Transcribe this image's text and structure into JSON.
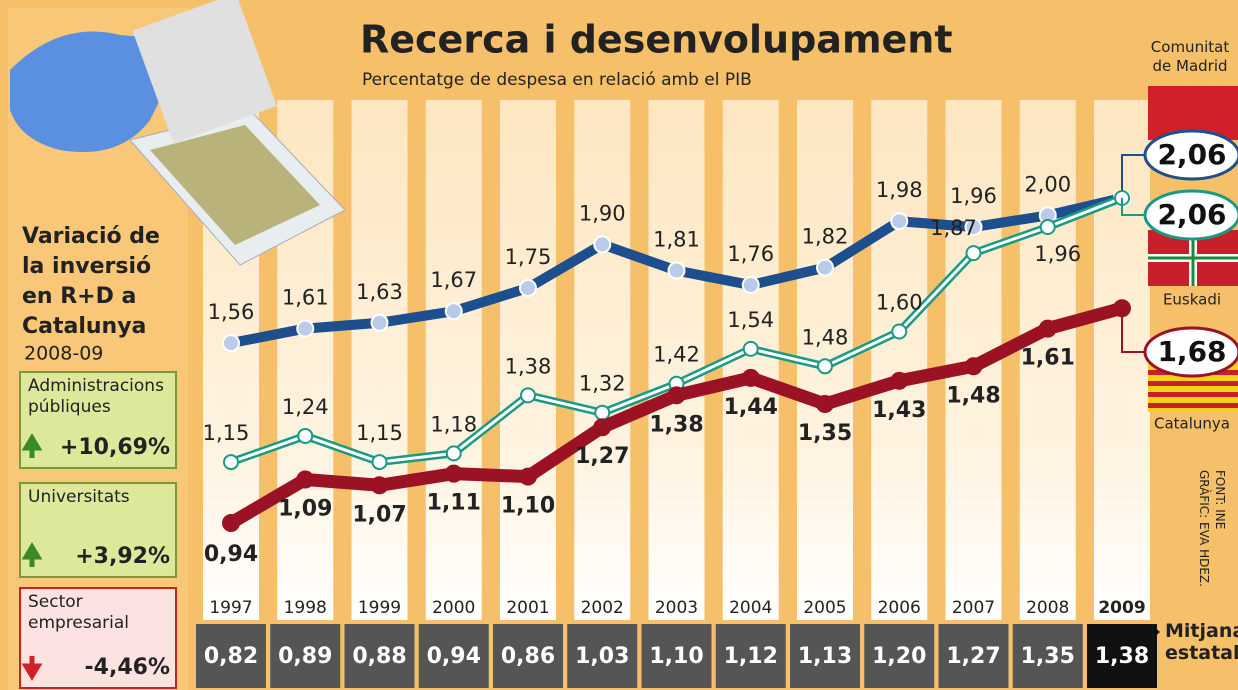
{
  "chart_data": {
    "type": "line",
    "title": "Recerca i desenvolupament",
    "subtitle": "Percentatge de despesa en relació amb el PIB",
    "categories": [
      "1997",
      "1998",
      "1999",
      "2000",
      "2001",
      "2002",
      "2003",
      "2004",
      "2005",
      "2006",
      "2007",
      "2008",
      "2009"
    ],
    "series": [
      {
        "name": "Comunitat de Madrid",
        "color": "#1d4f8f",
        "values": [
          1.56,
          1.61,
          1.63,
          1.67,
          1.75,
          1.9,
          1.81,
          1.76,
          1.82,
          1.98,
          1.96,
          2.0,
          2.06
        ],
        "value_labels": [
          "1,56",
          "1,61",
          "1,63",
          "1,67",
          "1,75",
          "1,90",
          "1,81",
          "1,76",
          "1,82",
          "1,98",
          "1,96",
          "2,00",
          "2,06"
        ]
      },
      {
        "name": "Euskadi",
        "color": "#1a9a84",
        "values": [
          1.15,
          1.24,
          1.15,
          1.18,
          1.38,
          1.32,
          1.42,
          1.54,
          1.48,
          1.6,
          1.87,
          1.96,
          2.06
        ],
        "value_labels": [
          "1,15",
          "1,24",
          "1,15",
          "1,18",
          "1,38",
          "1,32",
          "1,42",
          "1,54",
          "1,48",
          "1,60",
          "1,87",
          "1,96",
          "2,06"
        ]
      },
      {
        "name": "Catalunya",
        "color": "#9b1224",
        "values": [
          0.94,
          1.09,
          1.07,
          1.11,
          1.1,
          1.27,
          1.38,
          1.44,
          1.35,
          1.43,
          1.48,
          1.61,
          1.68
        ],
        "value_labels": [
          "0,94",
          "1,09",
          "1,07",
          "1,11",
          "1,10",
          "1,27",
          "1,38",
          "1,44",
          "1,35",
          "1,43",
          "1,48",
          "1,61",
          "1,68"
        ]
      }
    ],
    "average": {
      "name": "Mitjana estatal",
      "values": [
        0.82,
        0.89,
        0.88,
        0.94,
        0.86,
        1.03,
        1.1,
        1.12,
        1.13,
        1.2,
        1.27,
        1.35,
        1.38
      ],
      "value_labels": [
        "0,82",
        "0,89",
        "0,88",
        "0,94",
        "0,86",
        "1,03",
        "1,10",
        "1,12",
        "1,13",
        "1,20",
        "1,27",
        "1,35",
        "1,38"
      ]
    }
  },
  "panel": {
    "title": "Variació de la inversió en R+D a Catalunya",
    "period": "2008-09",
    "items": [
      {
        "label": "Administracions públiques",
        "change": "+10,69%"
      },
      {
        "label": "Universitats",
        "change": "+3,92%"
      },
      {
        "label": "Sector empresarial",
        "change": "-4,46%"
      }
    ]
  },
  "credits": [
    "FONT: INE",
    "GRÀFIC: EVA HDEZ."
  ]
}
